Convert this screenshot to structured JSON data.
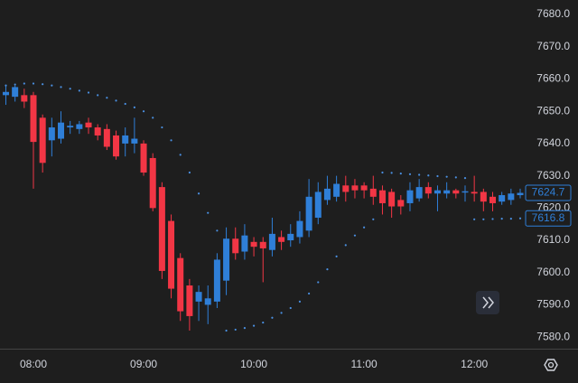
{
  "chart_data": {
    "type": "candlestick",
    "categories": [
      null,
      null,
      null,
      "08:00",
      null,
      null,
      null,
      null,
      null,
      null,
      null,
      null,
      null,
      null,
      null,
      "09:00",
      null,
      null,
      null,
      null,
      null,
      null,
      null,
      null,
      null,
      null,
      null,
      "10:00",
      null,
      null,
      null,
      null,
      null,
      null,
      null,
      null,
      null,
      null,
      null,
      "11:00",
      null,
      null,
      null,
      null,
      null,
      null,
      null,
      null,
      null,
      null,
      null,
      "12:00",
      null,
      null,
      null,
      null,
      null
    ],
    "open": [
      7655,
      7654.5,
      7655,
      7655,
      7648,
      7641,
      7641.5,
      7645,
      7644.5,
      7646.5,
      7645,
      7644.5,
      7642.5,
      7640,
      7640,
      7640,
      7635.5,
      7626.5,
      7616,
      7604.5,
      7596,
      7591,
      7590,
      7591,
      7597.5,
      7610.5,
      7606.5,
      7609.5,
      7609.5,
      7607,
      7611,
      7610,
      7611,
      7613,
      7617,
      7622.5,
      7623.5,
      7627,
      7627,
      7627,
      7626,
      7625.5,
      7625,
      7622.5,
      7621.5,
      7623,
      7626.5,
      7624.5,
      7624.5,
      7625.5,
      7624.8,
      7625,
      7625,
      7623.5,
      7622,
      7622.5,
      7624
    ],
    "high": [
      7658,
      7658,
      7657,
      7656,
      7649,
      7648,
      7650,
      7647,
      7647,
      7648,
      7646,
      7646,
      7644,
      7645,
      7648,
      7641,
      7637,
      7628,
      7618,
      7606,
      7598,
      7596,
      7596,
      7606,
      7614,
      7614,
      7615,
      7611,
      7611,
      7617,
      7613,
      7615,
      7619,
      7629,
      7628,
      7630,
      7630,
      7630,
      7629,
      7628,
      7630,
      7627,
      7626,
      7624,
      7628,
      7629,
      7628,
      7627,
      7628,
      7626,
      7627,
      7630,
      7626,
      7625,
      7625,
      7626,
      7626
    ],
    "low": [
      7652,
      7653,
      7651,
      7626,
      7631,
      7636,
      7640,
      7643,
      7643,
      7643,
      7641,
      7638,
      7635,
      7636,
      7637,
      7630,
      7619,
      7598,
      7592,
      7585,
      7582,
      7585,
      7584,
      7589,
      7593,
      7604,
      7604,
      7605,
      7597,
      7605,
      7607,
      7608,
      7609,
      7611,
      7615,
      7621,
      7622,
      7622,
      7623,
      7623,
      7621,
      7618,
      7617,
      7618,
      7619,
      7622,
      7623,
      7619,
      7623,
      7623,
      7622,
      7622,
      7619,
      7619,
      7621,
      7621,
      7623
    ],
    "close": [
      7656,
      7657.5,
      7653,
      7640.5,
      7634,
      7645,
      7646.5,
      7645.5,
      7646,
      7645,
      7642.5,
      7639,
      7636,
      7642.5,
      7641.5,
      7631,
      7620,
      7600.5,
      7595,
      7588,
      7586.5,
      7594,
      7592,
      7604,
      7610.5,
      7606,
      7611.5,
      7608,
      7607.5,
      7612,
      7609.5,
      7612,
      7616,
      7623.5,
      7625,
      7626,
      7627.5,
      7625,
      7625.5,
      7625.5,
      7623.5,
      7621.5,
      7620.5,
      7620.5,
      7625.5,
      7626.5,
      7624.5,
      7625.5,
      7625.5,
      7624.5,
      7625.2,
      7624.5,
      7622,
      7621.5,
      7624,
      7624.5,
      7624.7
    ],
    "sar": [
      7658,
      7658.3,
      7658.6,
      7658.6,
      7658.4,
      7658,
      7657.5,
      7657,
      7656.4,
      7655.8,
      7655,
      7654.2,
      7653.3,
      7652.3,
      7651.2,
      7650,
      7648,
      7645,
      7641,
      7636.5,
      7631,
      7624.5,
      7618.5,
      7613,
      7582,
      7582.3,
      7582.8,
      7583.5,
      7584.5,
      7586,
      7587.5,
      7589,
      7591,
      7593.5,
      7597,
      7601,
      7605,
      7608.5,
      7611.5,
      7614,
      7616.5,
      7631,
      7630.9,
      7630.7,
      7630.5,
      7630.3,
      7630.1,
      7629.9,
      7629.7,
      7629.5,
      7629.3,
      7616.5,
      7616.5,
      7616.6,
      7616.7,
      7616.7,
      7616.8
    ],
    "up_color": "#2f7fd8",
    "down_color": "#f23645",
    "sar_color": "#4a8fe0",
    "ylim": [
      7576.4,
      7684.5
    ],
    "yticks": [
      {
        "value": 7580,
        "label": "7580.0"
      },
      {
        "value": 7590,
        "label": "7590.0"
      },
      {
        "value": 7600,
        "label": "7600.0"
      },
      {
        "value": 7610,
        "label": "7610.0"
      },
      {
        "value": 7620,
        "label": "7620.0"
      },
      {
        "value": 7630,
        "label": "7630.0"
      },
      {
        "value": 7640,
        "label": "7640.0"
      },
      {
        "value": 7650,
        "label": "7650.0"
      },
      {
        "value": 7660,
        "label": "7660.0"
      },
      {
        "value": 7670,
        "label": "7670.0"
      },
      {
        "value": 7680,
        "label": "7680.0"
      }
    ],
    "price_labels": [
      7624.7,
      7616.8
    ]
  }
}
